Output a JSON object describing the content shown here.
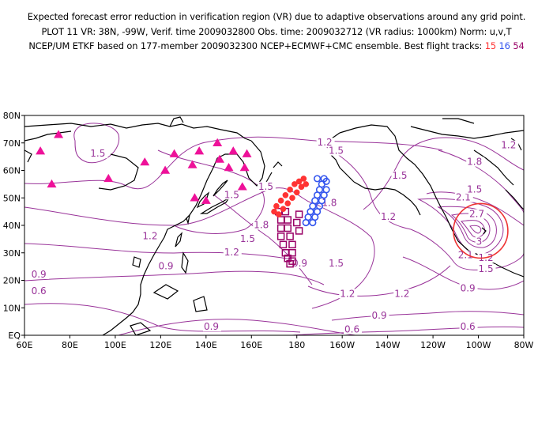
{
  "header": {
    "line1": "Expected forecast error reduction in verification region (VR) due to adaptive observations around any grid point.",
    "line2": "PLOT 11 VR: 38N, -99W, Verif. time 2009032800 Obs. time: 2009032712 (VR radius: 1000km) Norm: u,v,T",
    "line3_prefix": "NCEP/UM ETKF based on 177-member 2009032300 NCEP+ECMWF+CMC ensemble. Best flight tracks: ",
    "tracks": [
      {
        "label": "15",
        "color": "#ff3333",
        "symbol": "filled-circle"
      },
      {
        "label": "16",
        "color": "#3355ee",
        "symbol": "open-circle"
      },
      {
        "label": "54",
        "color": "#990066",
        "symbol": "open-square"
      }
    ]
  },
  "map": {
    "lon_range": [
      60,
      280
    ],
    "lat_range": [
      0,
      80
    ],
    "x_ticks": [
      "60E",
      "80E",
      "100E",
      "120E",
      "140E",
      "160E",
      "180",
      "160W",
      "140W",
      "120W",
      "100W",
      "80W"
    ],
    "y_ticks": [
      "EQ",
      "10N",
      "20N",
      "30N",
      "40N",
      "50N",
      "60N",
      "70N",
      "80N"
    ],
    "contour_color": "#993399",
    "coast_color": "#000000",
    "contour_labels": [
      {
        "text": "1.5",
        "lon": 89,
        "lat": 65
      },
      {
        "text": "1.2",
        "lon": 189,
        "lat": 69
      },
      {
        "text": "1.5",
        "lon": 194,
        "lat": 66
      },
      {
        "text": "1.5",
        "lon": 222,
        "lat": 57
      },
      {
        "text": "1.8",
        "lon": 255,
        "lat": 62
      },
      {
        "text": "1.2",
        "lon": 270,
        "lat": 68
      },
      {
        "text": "1.5",
        "lon": 148,
        "lat": 50
      },
      {
        "text": "1.5",
        "lon": 163,
        "lat": 53
      },
      {
        "text": "1.8",
        "lon": 191,
        "lat": 47
      },
      {
        "text": "1.2",
        "lon": 217,
        "lat": 42
      },
      {
        "text": "1.8",
        "lon": 161,
        "lat": 39
      },
      {
        "text": "1.5",
        "lon": 155,
        "lat": 34
      },
      {
        "text": "1.2",
        "lon": 148,
        "lat": 29
      },
      {
        "text": "1.2",
        "lon": 112,
        "lat": 35
      },
      {
        "text": "0.9",
        "lon": 178,
        "lat": 25
      },
      {
        "text": "1.5",
        "lon": 194,
        "lat": 25
      },
      {
        "text": "0.9",
        "lon": 63,
        "lat": 21
      },
      {
        "text": "0.9",
        "lon": 119,
        "lat": 24
      },
      {
        "text": "0.6",
        "lon": 63,
        "lat": 15
      },
      {
        "text": "1.2",
        "lon": 199,
        "lat": 14
      },
      {
        "text": "1.2",
        "lon": 223,
        "lat": 14
      },
      {
        "text": "0.9",
        "lon": 213,
        "lat": 6
      },
      {
        "text": "0.9",
        "lon": 139,
        "lat": 2
      },
      {
        "text": "0.6",
        "lon": 201,
        "lat": 1
      },
      {
        "text": "0.6",
        "lon": 252,
        "lat": 2
      },
      {
        "text": "0.9",
        "lon": 252,
        "lat": 16
      },
      {
        "text": "1.2",
        "lon": 260,
        "lat": 27
      },
      {
        "text": "1.5",
        "lon": 260,
        "lat": 23
      },
      {
        "text": "2.1",
        "lon": 251,
        "lat": 28
      },
      {
        "text": "2.1",
        "lon": 250,
        "lat": 49
      },
      {
        "text": "2.7",
        "lon": 256,
        "lat": 43
      },
      {
        "text": "3",
        "lon": 259,
        "lat": 33
      },
      {
        "text": "1.5",
        "lon": 255,
        "lat": 52
      }
    ],
    "max_marker": {
      "lon": 261,
      "lat": 38,
      "radius_deg": 12,
      "color": "#ee3333"
    },
    "triangles": {
      "color": "#ee1199",
      "points": [
        [
          67,
          67
        ],
        [
          75,
          73
        ],
        [
          72,
          55
        ],
        [
          97,
          57
        ],
        [
          113,
          63
        ],
        [
          122,
          60
        ],
        [
          126,
          66
        ],
        [
          134,
          62
        ],
        [
          137,
          67
        ],
        [
          145,
          70
        ],
        [
          146,
          64
        ],
        [
          150,
          61
        ],
        [
          152,
          67
        ],
        [
          158,
          66
        ],
        [
          157,
          61
        ],
        [
          156,
          54
        ],
        [
          140,
          49
        ],
        [
          135,
          50
        ]
      ]
    },
    "track_15": {
      "color": "#ff3333",
      "points": [
        [
          170,
          45
        ],
        [
          171,
          47
        ],
        [
          173,
          49
        ],
        [
          175,
          51
        ],
        [
          177,
          53
        ],
        [
          179,
          55
        ],
        [
          181,
          56
        ],
        [
          183,
          57
        ],
        [
          172,
          44
        ],
        [
          174,
          46
        ],
        [
          176,
          48
        ],
        [
          178,
          50
        ],
        [
          180,
          52
        ],
        [
          182,
          54
        ],
        [
          184,
          55
        ]
      ]
    },
    "track_16": {
      "color": "#3355ee",
      "points": [
        [
          184,
          41
        ],
        [
          185,
          43
        ],
        [
          186,
          45
        ],
        [
          187,
          47
        ],
        [
          188,
          49
        ],
        [
          189,
          51
        ],
        [
          190,
          53
        ],
        [
          191,
          55
        ],
        [
          192,
          57
        ],
        [
          187,
          41
        ],
        [
          188,
          43
        ],
        [
          189,
          45
        ],
        [
          190,
          47
        ],
        [
          191,
          49
        ],
        [
          192,
          51
        ],
        [
          193,
          53
        ],
        [
          193,
          56
        ],
        [
          189,
          57
        ]
      ]
    },
    "track_54": {
      "color": "#990066",
      "points": [
        [
          172,
          45
        ],
        [
          173,
          42
        ],
        [
          173,
          39
        ],
        [
          173,
          36
        ],
        [
          174,
          33
        ],
        [
          175,
          30
        ],
        [
          176,
          28
        ],
        [
          177,
          26
        ],
        [
          175,
          45
        ],
        [
          176,
          42
        ],
        [
          176,
          39
        ],
        [
          177,
          36
        ],
        [
          178,
          33
        ],
        [
          178,
          30
        ],
        [
          178,
          27
        ],
        [
          181,
          44
        ],
        [
          180,
          41
        ],
        [
          181,
          38
        ]
      ]
    }
  }
}
